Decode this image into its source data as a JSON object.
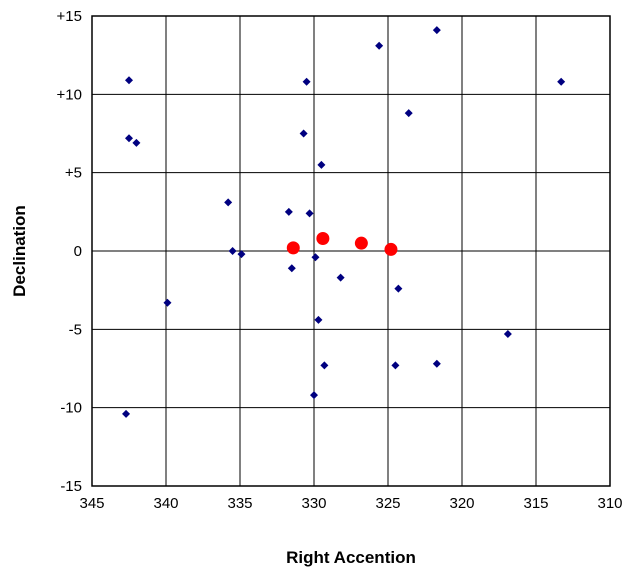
{
  "chart_data": {
    "type": "scatter",
    "xlabel": "Right Accention",
    "ylabel": "Declination",
    "xlim": [
      345,
      310
    ],
    "ylim": [
      -15,
      15
    ],
    "x_reversed": true,
    "grid": true,
    "x_ticks": [
      345,
      340,
      335,
      330,
      325,
      320,
      315,
      310
    ],
    "x_tick_labels": [
      "345",
      "340",
      "335",
      "330",
      "325",
      "320",
      "315",
      "310"
    ],
    "y_ticks": [
      15,
      10,
      5,
      0,
      -5,
      -10,
      -15
    ],
    "y_tick_labels": [
      "+15",
      "+10",
      "+5",
      "0",
      "-5",
      "-10",
      "-15"
    ],
    "series": [
      {
        "marker": "diamond",
        "color": "#000080",
        "points": [
          [
            342.5,
            10.9
          ],
          [
            342.5,
            7.2
          ],
          [
            342.0,
            6.9
          ],
          [
            342.7,
            -10.4
          ],
          [
            339.9,
            -3.3
          ],
          [
            335.8,
            3.1
          ],
          [
            335.5,
            0.0
          ],
          [
            334.9,
            -0.2
          ],
          [
            331.7,
            2.5
          ],
          [
            331.5,
            -1.1
          ],
          [
            330.5,
            10.8
          ],
          [
            330.7,
            7.5
          ],
          [
            330.3,
            2.4
          ],
          [
            329.9,
            -0.4
          ],
          [
            329.7,
            -4.4
          ],
          [
            329.5,
            5.5
          ],
          [
            329.3,
            -7.3
          ],
          [
            330.0,
            -9.2
          ],
          [
            328.2,
            -1.7
          ],
          [
            325.6,
            13.1
          ],
          [
            324.5,
            -7.3
          ],
          [
            324.3,
            -2.4
          ],
          [
            323.6,
            8.8
          ],
          [
            321.7,
            14.1
          ],
          [
            321.7,
            -7.2
          ],
          [
            316.9,
            -5.3
          ],
          [
            313.3,
            10.8
          ]
        ]
      },
      {
        "marker": "circle",
        "color": "#ff0000",
        "points": [
          [
            331.4,
            0.2
          ],
          [
            329.4,
            0.8
          ],
          [
            326.8,
            0.5
          ],
          [
            324.8,
            0.1
          ]
        ]
      }
    ]
  }
}
